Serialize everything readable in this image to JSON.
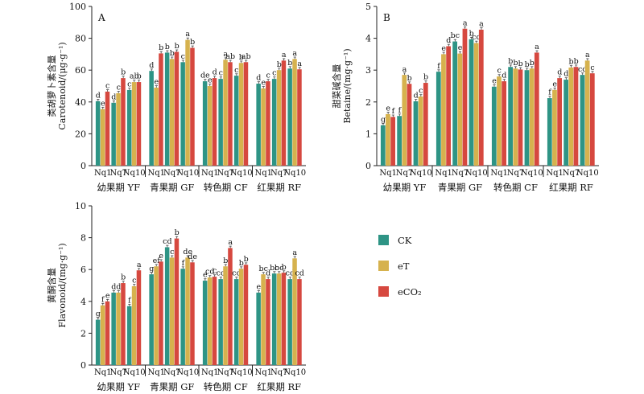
{
  "legend": {
    "items": [
      {
        "name": "CK",
        "color": "#2e9485"
      },
      {
        "name": "eT",
        "color": "#d6b24e"
      },
      {
        "name": "eCO₂",
        "color": "#d6483f"
      }
    ]
  },
  "chart_data": [
    {
      "type": "bar",
      "panel_label": "A",
      "ylabel_cn": "类胡萝卜素含量",
      "ylabel_en": "Carotenoid/(μg·g⁻¹)",
      "ylim": [
        0,
        100
      ],
      "yticks": [
        0,
        20,
        40,
        60,
        80,
        100
      ],
      "stages": [
        "幼果期 YF",
        "青果期 GF",
        "转色期 CF",
        "红果期 RF"
      ],
      "xtick_labels": [
        "Nq1",
        "Nq7",
        "Nq10"
      ],
      "series": [
        {
          "values": [
            [
              40.5,
              35.5,
              46.5
            ],
            [
              39.5,
              45.5,
              55.0
            ],
            [
              47.5,
              52.5,
              52.5
            ],
            [
              59.5,
              49.0,
              70.5
            ],
            [
              71.0,
              67.0,
              71.5
            ],
            [
              65.0,
              79.0,
              74.0
            ],
            [
              53.0,
              50.0,
              55.0
            ],
            [
              54.5,
              66.5,
              65.0
            ],
            [
              56.5,
              64.5,
              65.0
            ],
            [
              51.5,
              48.5,
              53.0
            ],
            [
              54.5,
              60.0,
              66.0
            ],
            [
              61.0,
              67.0,
              60.5
            ]
          ]
        }
      ],
      "bars": [
        [
          {
            "v": 40.5,
            "l": "d"
          },
          {
            "v": 35.5,
            "l": "e"
          },
          {
            "v": 46.5,
            "l": "c"
          },
          {
            "v": 39.5,
            "l": "d"
          },
          {
            "v": 45.5,
            "l": "c"
          },
          {
            "v": 55.0,
            "l": "b"
          },
          {
            "v": 47.5,
            "l": "c"
          },
          {
            "v": 52.5,
            "l": "ab"
          },
          {
            "v": 52.5,
            "l": "b"
          }
        ],
        [
          {
            "v": 59.5,
            "l": "d"
          },
          {
            "v": 49.0,
            "l": "e"
          },
          {
            "v": 70.5,
            "l": "b"
          },
          {
            "v": 71.0,
            "l": "b"
          },
          {
            "v": 67.0,
            "l": "b"
          },
          {
            "v": 71.5,
            "l": "b"
          },
          {
            "v": 65.0,
            "l": "c"
          },
          {
            "v": 79.0,
            "l": "a"
          },
          {
            "v": 74.0,
            "l": "b"
          }
        ],
        [
          {
            "v": 53.0,
            "l": "de"
          },
          {
            "v": 50.0,
            "l": "e"
          },
          {
            "v": 55.0,
            "l": "d"
          },
          {
            "v": 54.5,
            "l": "c"
          },
          {
            "v": 66.5,
            "l": "a"
          },
          {
            "v": 65.0,
            "l": "ab"
          },
          {
            "v": 56.5,
            "l": "c"
          },
          {
            "v": 64.5,
            "l": "b"
          },
          {
            "v": 65.0,
            "l": "ab"
          }
        ],
        [
          {
            "v": 51.5,
            "l": "d"
          },
          {
            "v": 48.5,
            "l": "e"
          },
          {
            "v": 53.0,
            "l": "c"
          },
          {
            "v": 54.5,
            "l": "c"
          },
          {
            "v": 60.0,
            "l": "b"
          },
          {
            "v": 66.0,
            "l": "a"
          },
          {
            "v": 61.0,
            "l": "b"
          },
          {
            "v": 67.0,
            "l": "a"
          },
          {
            "v": 60.5,
            "l": "a"
          }
        ]
      ]
    },
    {
      "type": "bar",
      "panel_label": "B",
      "ylabel_cn": "甜菜碱含量",
      "ylabel_en": "Betaine/(mg·g⁻¹)",
      "ylim": [
        0,
        5
      ],
      "yticks": [
        0,
        1,
        2,
        3,
        4,
        5
      ],
      "stages": [
        "幼果期 YF",
        "青果期 GF",
        "转色期 CF",
        "红果期 RF"
      ],
      "xtick_labels": [
        "Nq1",
        "Nq7",
        "Nq10"
      ],
      "bars": [
        [
          {
            "v": 1.27,
            "l": "g"
          },
          {
            "v": 1.62,
            "l": "e"
          },
          {
            "v": 1.53,
            "l": "f"
          },
          {
            "v": 1.56,
            "l": "f"
          },
          {
            "v": 2.85,
            "l": "a"
          },
          {
            "v": 2.57,
            "l": "b"
          },
          {
            "v": 2.02,
            "l": "d"
          },
          {
            "v": 2.17,
            "l": "c"
          },
          {
            "v": 2.6,
            "l": "b"
          }
        ],
        [
          {
            "v": 2.95,
            "l": "f"
          },
          {
            "v": 3.5,
            "l": "e"
          },
          {
            "v": 3.75,
            "l": "d"
          },
          {
            "v": 3.9,
            "l": "bc"
          },
          {
            "v": 3.52,
            "l": "e"
          },
          {
            "v": 4.3,
            "l": "a"
          },
          {
            "v": 3.97,
            "l": "b"
          },
          {
            "v": 3.85,
            "l": "cd"
          },
          {
            "v": 4.27,
            "l": "a"
          }
        ],
        [
          {
            "v": 2.48,
            "l": "e"
          },
          {
            "v": 2.8,
            "l": "c"
          },
          {
            "v": 2.65,
            "l": "d"
          },
          {
            "v": 3.1,
            "l": "b"
          },
          {
            "v": 3.05,
            "l": "b"
          },
          {
            "v": 3.02,
            "l": "b"
          },
          {
            "v": 3.0,
            "l": "b"
          },
          {
            "v": 3.05,
            "l": "b"
          },
          {
            "v": 3.55,
            "l": "a"
          }
        ],
        [
          {
            "v": 2.12,
            "l": "f"
          },
          {
            "v": 2.38,
            "l": "e"
          },
          {
            "v": 2.75,
            "l": "d"
          },
          {
            "v": 2.7,
            "l": "d"
          },
          {
            "v": 3.08,
            "l": "b"
          },
          {
            "v": 3.1,
            "l": "b"
          },
          {
            "v": 2.85,
            "l": "cd"
          },
          {
            "v": 3.3,
            "l": "a"
          },
          {
            "v": 2.9,
            "l": "c"
          }
        ]
      ]
    },
    {
      "type": "bar",
      "panel_label": "",
      "ylabel_cn": "黄酮含量",
      "ylabel_en": "Flavonoid/(mg·g⁻¹)",
      "ylim": [
        0,
        10
      ],
      "yticks": [
        0,
        2,
        4,
        6,
        8,
        10
      ],
      "stages": [
        "幼果期 YF",
        "青果期 GF",
        "转色期 CF",
        "红果期 RF"
      ],
      "xtick_labels": [
        "Nq1",
        "Nq7",
        "Nq10"
      ],
      "bars": [
        [
          {
            "v": 2.85,
            "l": "g"
          },
          {
            "v": 3.75,
            "l": "f"
          },
          {
            "v": 4.0,
            "l": "e"
          },
          {
            "v": 4.55,
            "l": "d"
          },
          {
            "v": 4.55,
            "l": "d"
          },
          {
            "v": 5.15,
            "l": "b"
          },
          {
            "v": 3.7,
            "l": "f"
          },
          {
            "v": 4.95,
            "l": "c"
          },
          {
            "v": 5.95,
            "l": "a"
          }
        ],
        [
          {
            "v": 5.7,
            "l": "g"
          },
          {
            "v": 6.2,
            "l": "ef"
          },
          {
            "v": 6.5,
            "l": "e"
          },
          {
            "v": 7.4,
            "l": "cd"
          },
          {
            "v": 6.75,
            "l": "c"
          },
          {
            "v": 7.95,
            "l": "b"
          },
          {
            "v": 6.05,
            "l": "f"
          },
          {
            "v": 6.75,
            "l": "de"
          },
          {
            "v": 6.45,
            "l": "de"
          }
        ],
        [
          {
            "v": 5.3,
            "l": "e"
          },
          {
            "v": 5.5,
            "l": "cd"
          },
          {
            "v": 5.55,
            "l": "c"
          },
          {
            "v": 5.4,
            "l": "cd"
          },
          {
            "v": 6.2,
            "l": "b"
          },
          {
            "v": 7.35,
            "l": "a"
          },
          {
            "v": 5.4,
            "l": "cd"
          },
          {
            "v": 6.05,
            "l": "b"
          },
          {
            "v": 6.3,
            "l": "b"
          }
        ],
        [
          {
            "v": 4.55,
            "l": "e"
          },
          {
            "v": 5.7,
            "l": "bc"
          },
          {
            "v": 5.4,
            "l": "d"
          },
          {
            "v": 5.75,
            "l": "bc"
          },
          {
            "v": 5.75,
            "l": "bc"
          },
          {
            "v": 5.8,
            "l": "b"
          },
          {
            "v": 5.4,
            "l": "cd"
          },
          {
            "v": 6.7,
            "l": "a"
          },
          {
            "v": 5.4,
            "l": "cd"
          }
        ]
      ]
    }
  ]
}
